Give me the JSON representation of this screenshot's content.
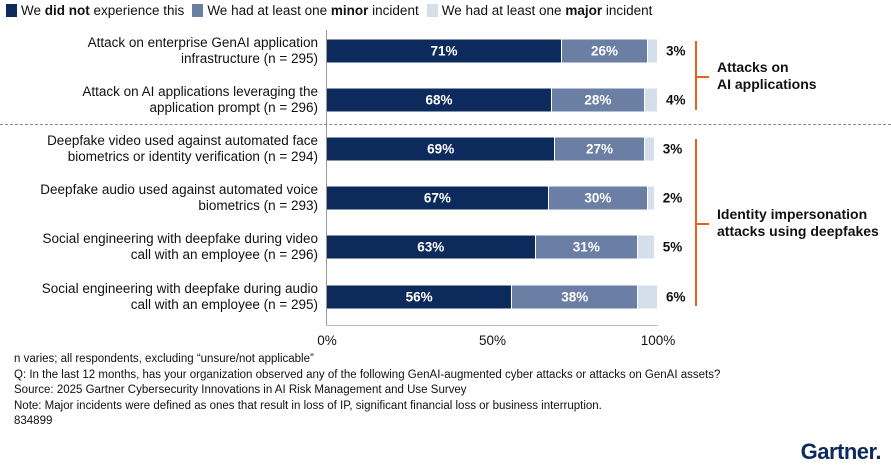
{
  "chart_data": {
    "type": "bar",
    "orientation": "horizontal-stacked-100",
    "legend": {
      "position": "top-left",
      "entries": [
        {
          "pre": "We ",
          "bold": "did not",
          "post": " experience this",
          "color": "#0d2a5c"
        },
        {
          "pre": "We had at least one ",
          "bold": "minor",
          "post": " incident",
          "color": "#6b7ea3"
        },
        {
          "pre": "We had at least one ",
          "bold": "major",
          "post": " incident",
          "color": "#d5dfeb"
        }
      ]
    },
    "categories": [
      "Attack on enterprise GenAI application infrastructure (n = 295)",
      "Attack on AI applications leveraging the application prompt (n = 296)",
      "Deepfake video used against automated face biometrics or identity verification (n = 294)",
      "Deepfake audio used against automated voice biometrics (n = 293)",
      "Social engineering with deepfake during video call with an employee (n = 296)",
      "Social engineering with deepfake during audio call with an employee (n = 295)"
    ],
    "category_lines": [
      [
        "Attack on enterprise GenAI application",
        "infrastructure (n = 295)"
      ],
      [
        "Attack on AI applications leveraging the",
        "application prompt (n = 296)"
      ],
      [
        "Deepfake video used against automated face",
        "biometrics or identity verification (n = 294)"
      ],
      [
        "Deepfake audio used against automated voice",
        "biometrics (n = 293)"
      ],
      [
        "Social engineering with deepfake during video",
        "call with an employee (n = 296)"
      ],
      [
        "Social engineering with deepfake during audio",
        "call with an employee (n = 295)"
      ]
    ],
    "series": [
      {
        "name": "We did not experience this",
        "values": [
          71,
          68,
          69,
          67,
          63,
          56
        ]
      },
      {
        "name": "We had at least one minor incident",
        "values": [
          26,
          28,
          27,
          30,
          31,
          38
        ]
      },
      {
        "name": "We had at least one major incident",
        "values": [
          3,
          4,
          3,
          2,
          5,
          6
        ]
      }
    ],
    "xlim": [
      0,
      100
    ],
    "xticks": [
      "0%",
      "50%",
      "100%"
    ],
    "groups": [
      {
        "label_lines": [
          "Attacks on",
          "AI applications"
        ],
        "rows": [
          0,
          1
        ]
      },
      {
        "label_lines": [
          "Identity impersonation",
          "attacks using deepfakes"
        ],
        "rows": [
          2,
          3,
          4,
          5
        ]
      }
    ],
    "grid": false
  },
  "notes": [
    "n varies; all respondents, excluding “unsure/not applicable”",
    "Q: In the last 12 months, has your organization observed any of the following GenAI-augmented cyber attacks or attacks on GenAI assets?",
    "Source: 2025 Gartner Cybersecurity Innovations in AI Risk Management and Use Survey",
    "Note: Major incidents were defined as ones that result in loss of IP, significant financial loss or business interruption.",
    "834899"
  ],
  "logo": "Gartner.",
  "colors": {
    "accent": "#e8601c"
  }
}
